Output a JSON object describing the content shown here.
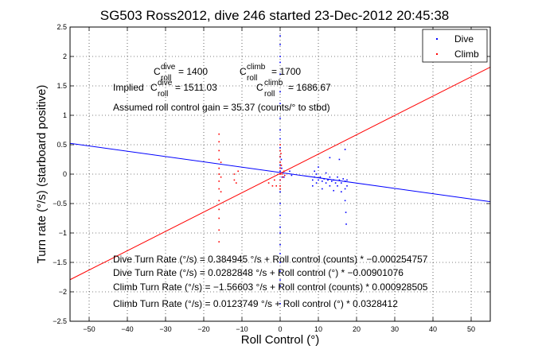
{
  "chart_data": {
    "type": "scatter",
    "title": "SG503 Ross2012, dive 246 started 23-Dec-2012 20:45:38",
    "xlabel": "Roll Control (°)",
    "ylabel": "Turn rate (°/s) (starboard positive)",
    "xlim": [
      -55,
      55
    ],
    "ylim": [
      -2.5,
      2.5
    ],
    "xticks": [
      -50,
      -40,
      -30,
      -20,
      -10,
      0,
      10,
      20,
      30,
      40,
      50
    ],
    "yticks": [
      -2.5,
      -2,
      -1.5,
      -1,
      -0.5,
      0,
      0.5,
      1,
      1.5,
      2,
      2.5
    ],
    "xtick_labels": [
      "−50",
      "−40",
      "−30",
      "−20",
      "−10",
      "0",
      "10",
      "20",
      "30",
      "40",
      "50"
    ],
    "ytick_labels": [
      "−2.5",
      "−2",
      "−1.5",
      "−1",
      "−0.5",
      "0",
      "0.5",
      "1",
      "1.5",
      "2",
      "2.5"
    ],
    "grid": true,
    "legend_position": "top-right",
    "colors": {
      "dive": "#0000ff",
      "climb": "#ff0000",
      "axis": "#000000"
    },
    "series": [
      {
        "name": "Dive",
        "color": "#0000ff",
        "points": [
          [
            0,
            2.35
          ],
          [
            0,
            2.2
          ],
          [
            0,
            2.0
          ],
          [
            0,
            1.9
          ],
          [
            0,
            1.7
          ],
          [
            0,
            1.4
          ],
          [
            0,
            1.2
          ],
          [
            0,
            0.95
          ],
          [
            0,
            0.75
          ],
          [
            0,
            0.6
          ],
          [
            0,
            0.45
          ],
          [
            0,
            0.3
          ],
          [
            0,
            0.15
          ],
          [
            0,
            0.05
          ],
          [
            0,
            -0.1
          ],
          [
            0,
            -0.3
          ],
          [
            0,
            -0.5
          ],
          [
            0,
            -0.7
          ],
          [
            0,
            -0.9
          ],
          [
            0,
            -1.0
          ],
          [
            0,
            -1.2
          ],
          [
            0,
            -1.35
          ],
          [
            0,
            -1.5
          ],
          [
            0,
            -1.65
          ],
          [
            0,
            -1.8
          ],
          [
            0,
            -1.9
          ],
          [
            0,
            -2.2
          ],
          [
            0.3,
            0.25
          ],
          [
            0.4,
            0.1
          ],
          [
            0.5,
            -0.05
          ],
          [
            1.0,
            -0.05
          ],
          [
            2.5,
            0.05
          ],
          [
            3.0,
            -0.02
          ],
          [
            8.5,
            -0.1
          ],
          [
            8.5,
            -0.2
          ],
          [
            9.0,
            0.05
          ],
          [
            9.0,
            -0.05
          ],
          [
            9.5,
            -0.15
          ],
          [
            9.5,
            0.0
          ],
          [
            10.0,
            -0.1
          ],
          [
            10.0,
            0.12
          ],
          [
            10.5,
            -0.05
          ],
          [
            11.0,
            -0.12
          ],
          [
            11.0,
            -0.25
          ],
          [
            11.5,
            -0.08
          ],
          [
            12.0,
            -0.15
          ],
          [
            12.0,
            0.02
          ],
          [
            12.5,
            -0.1
          ],
          [
            13.0,
            -0.2
          ],
          [
            13.0,
            -0.05
          ],
          [
            13.5,
            -0.12
          ],
          [
            14.0,
            -0.1
          ],
          [
            14.0,
            -0.28
          ],
          [
            14.5,
            -0.15
          ],
          [
            15.0,
            -0.05
          ],
          [
            15.0,
            -0.2
          ],
          [
            15.5,
            -0.1
          ],
          [
            16.0,
            -0.15
          ],
          [
            16.0,
            -0.3
          ],
          [
            16.5,
            -0.08
          ],
          [
            17.0,
            -0.12
          ],
          [
            17.0,
            -0.25
          ],
          [
            17.5,
            -0.1
          ],
          [
            17.5,
            -0.2
          ],
          [
            17.0,
            -0.45
          ],
          [
            17.2,
            -0.65
          ],
          [
            17.3,
            -0.85
          ],
          [
            15.5,
            0.25
          ],
          [
            13.0,
            0.28
          ],
          [
            17.0,
            0.42
          ]
        ]
      },
      {
        "name": "Climb",
        "color": "#ff0000",
        "points": [
          [
            -16,
            0.68
          ],
          [
            -16,
            0.55
          ],
          [
            -16,
            0.4
          ],
          [
            -16,
            0.25
          ],
          [
            -16,
            0.1
          ],
          [
            -16,
            0.0
          ],
          [
            -16,
            -0.12
          ],
          [
            -16,
            -0.25
          ],
          [
            -16,
            -0.45
          ],
          [
            -16,
            -0.6
          ],
          [
            -16,
            -0.75
          ],
          [
            -16,
            -0.95
          ],
          [
            -16,
            -1.15
          ],
          [
            -15.5,
            0.2
          ],
          [
            -15.5,
            -0.05
          ],
          [
            -15.5,
            -0.3
          ],
          [
            -12,
            0.0
          ],
          [
            -12,
            -0.1
          ],
          [
            -11.5,
            -0.15
          ],
          [
            -11,
            0.05
          ],
          [
            -3,
            -0.15
          ],
          [
            -2,
            -0.2
          ],
          [
            -1.5,
            -0.1
          ],
          [
            -1,
            -0.2
          ],
          [
            0,
            0.5
          ],
          [
            0,
            0.4
          ],
          [
            0,
            0.3
          ],
          [
            0,
            0.2
          ],
          [
            0,
            0.1
          ],
          [
            0,
            0.0
          ],
          [
            0,
            -0.1
          ],
          [
            0,
            -0.2
          ],
          [
            0,
            -0.25
          ],
          [
            0.2,
            0.35
          ],
          [
            0.3,
            0.15
          ],
          [
            0.5,
            0.0
          ],
          [
            0.7,
            -0.05
          ],
          [
            1.0,
            0.05
          ],
          [
            1.2,
            -0.02
          ]
        ]
      }
    ],
    "fits": [
      {
        "name": "Dive fit",
        "color": "#0000ff",
        "slope": -0.00901076,
        "intercept": 0.0282848
      },
      {
        "name": "Climb fit",
        "color": "#ff0000",
        "slope": 0.0328412,
        "intercept": 0.0123749
      }
    ],
    "annotations": {
      "c_roll_dive": {
        "base": "C",
        "sup": "dive",
        "sub": "roll",
        "value": " = 1400"
      },
      "c_roll_climb": {
        "base": "C",
        "sup": "climb",
        "sub": "roll",
        "value": " = 1700"
      },
      "implied_prefix": "Implied ",
      "implied_dive": {
        "base": "C",
        "sup": "dive",
        "sub": "roll",
        "value": " = 1511.03"
      },
      "implied_climb": {
        "base": "C",
        "sup": "climb",
        "sub": "roll",
        "value": " = 1686.67"
      },
      "gain": "Assumed roll control gain = 35.37 (counts/° to stbd)",
      "equations": [
        "Dive Turn Rate (°/s) = 0.384945 °/s + Roll control (counts) * −0.000254757",
        "Dive Turn Rate (°/s) = 0.0282848 °/s + Roll control (°) * −0.00901076",
        "Climb Turn Rate (°/s) = −1.56603 °/s + Roll control (counts) * 0.000928505",
        "Climb Turn Rate (°/s) = 0.0123749 °/s + Roll control (°) * 0.0328412"
      ]
    }
  }
}
